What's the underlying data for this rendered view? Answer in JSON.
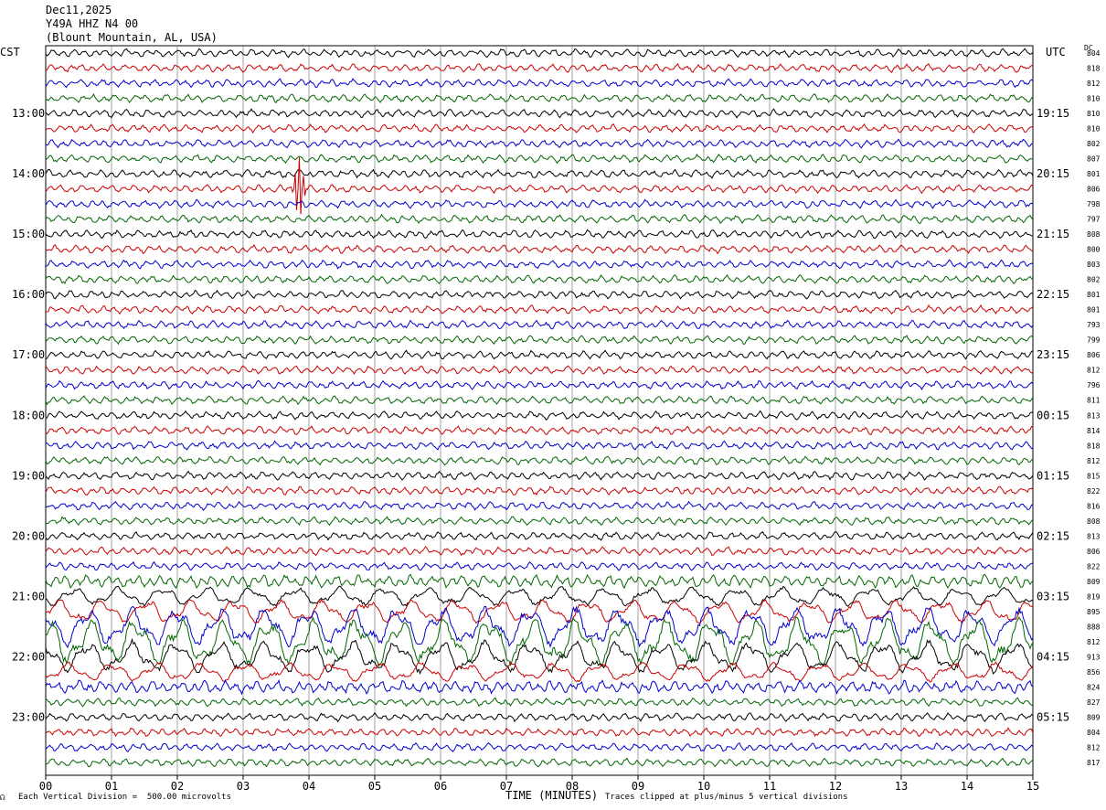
{
  "header": {
    "date": "Dec11,2025",
    "station": "Y49A HHZ N4 00",
    "location": "(Blount Mountain, AL, USA)"
  },
  "left_axis_title": "CST",
  "right_axis_title": "UTC",
  "dc_title": "DC",
  "footer": {
    "scale_note": "Each Vertical Division =  500.00 microvolts",
    "clip_note": "Traces clipped at plus/minus 5 vertical divisions",
    "logo_text": "☊"
  },
  "colors": {
    "trace_cycle": [
      "#000000",
      "#cc0000",
      "#0000cc",
      "#006600"
    ],
    "grid": "#666666"
  },
  "chart_data": {
    "type": "line",
    "title": "Dec11,2025",
    "xlabel": "TIME (MINUTES)",
    "ylabel": "",
    "xlim": [
      0,
      15
    ],
    "x_tick_labels": [
      "00",
      "01",
      "02",
      "03",
      "04",
      "05",
      "06",
      "07",
      "08",
      "09",
      "10",
      "11",
      "12",
      "13",
      "14",
      "15"
    ],
    "left_time_labels": [
      "13:00",
      "14:00",
      "15:00",
      "16:00",
      "17:00",
      "18:00",
      "19:00",
      "20:00",
      "21:00",
      "22:00",
      "23:00"
    ],
    "right_time_labels": [
      "19:15",
      "20:15",
      "21:15",
      "22:15",
      "23:15",
      "00:15",
      "01:15",
      "02:15",
      "03:15",
      "04:15",
      "05:15"
    ],
    "traces_per_hour": 4,
    "dc_offsets": [
      804,
      818,
      812,
      810,
      810,
      810,
      802,
      807,
      801,
      806,
      798,
      797,
      808,
      800,
      803,
      802,
      801,
      801,
      793,
      799,
      806,
      812,
      796,
      811,
      813,
      814,
      818,
      812,
      815,
      822,
      816,
      808,
      813,
      806,
      822,
      809,
      819,
      895,
      888,
      812,
      913,
      856,
      824,
      827,
      809,
      804,
      812,
      817
    ],
    "trace_amplitude_div": [
      0.5,
      0.5,
      0.5,
      0.5,
      0.5,
      0.5,
      0.5,
      0.5,
      0.5,
      0.5,
      0.5,
      0.5,
      0.5,
      0.5,
      0.5,
      0.5,
      0.5,
      0.5,
      0.5,
      0.5,
      0.5,
      0.5,
      0.5,
      0.5,
      0.5,
      0.5,
      0.5,
      0.5,
      0.5,
      0.5,
      0.5,
      0.5,
      0.5,
      0.5,
      0.5,
      0.8,
      1.2,
      1.5,
      2.5,
      3.0,
      2.0,
      1.2,
      0.8,
      0.5,
      0.5,
      0.5,
      0.5,
      0.5
    ],
    "events": [
      {
        "trace": 9,
        "minute": 3.85,
        "amplitude_div": 2.5
      }
    ]
  }
}
